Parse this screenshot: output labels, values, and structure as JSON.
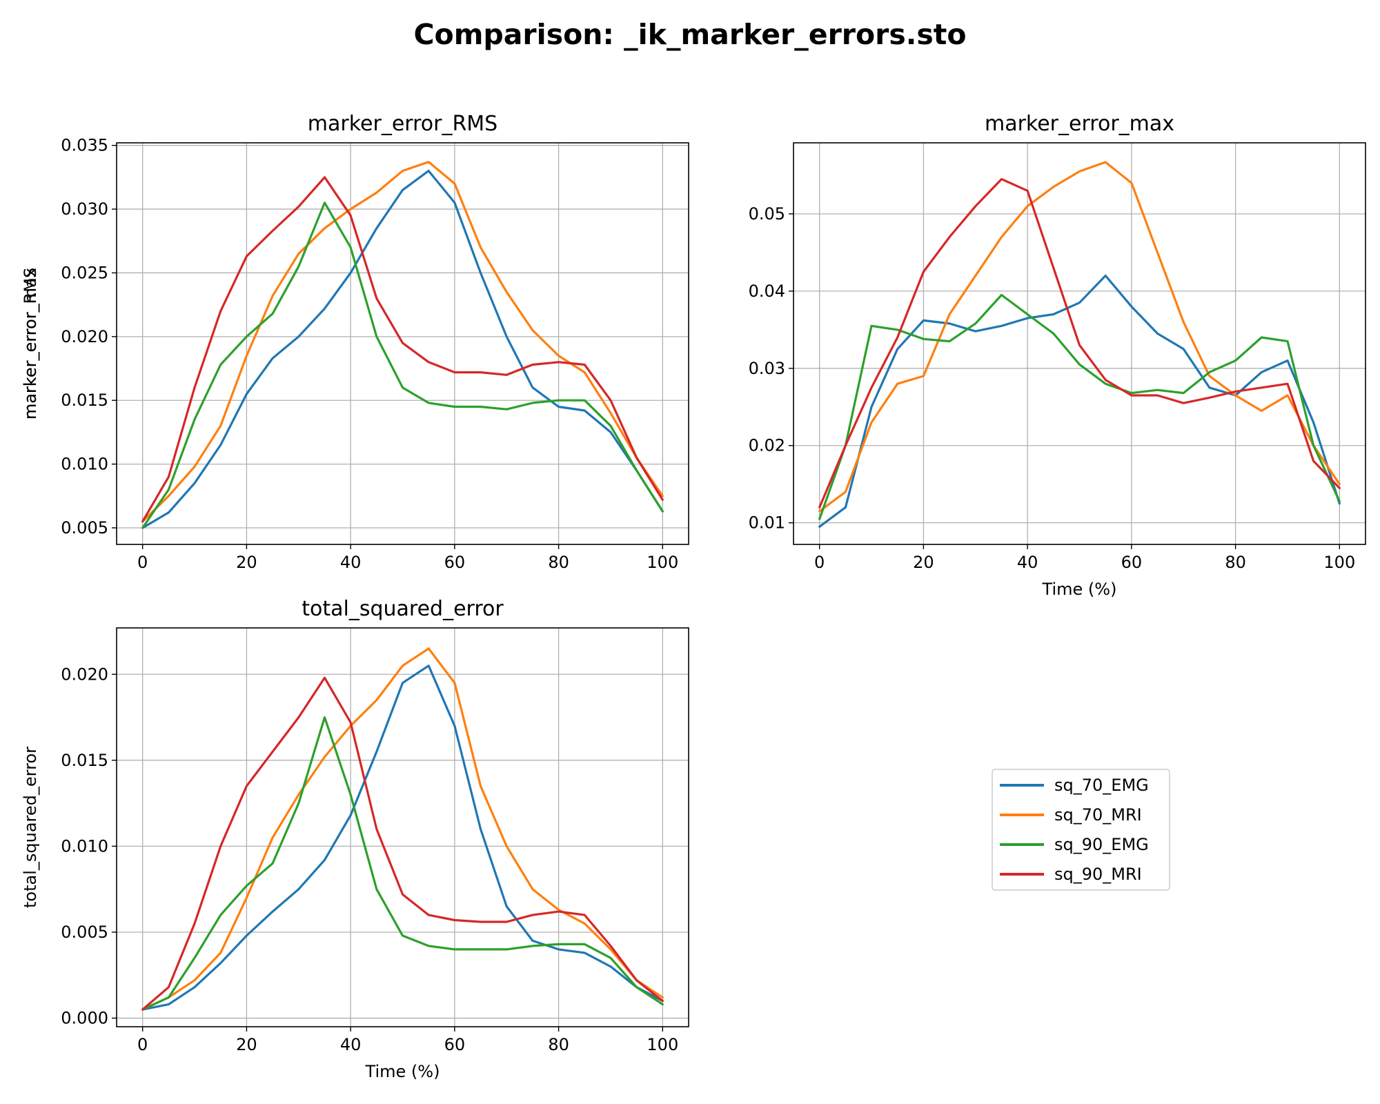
{
  "figure": {
    "title": "Comparison: _ik_marker_errors.sto"
  },
  "legend": {
    "placement": "lower-right empty panel",
    "entries": [
      "sq_70_EMG",
      "sq_70_MRI",
      "sq_90_EMG",
      "sq_90_MRI"
    ]
  },
  "colors": {
    "sq_70_EMG": "#1f77b4",
    "sq_70_MRI": "#ff7f0e",
    "sq_90_EMG": "#2ca02c",
    "sq_90_MRI": "#d62728"
  },
  "chart_data": [
    {
      "type": "line",
      "title": "marker_error_RMS",
      "xlabel": "",
      "ylabel": "marker_error_RMS",
      "xlim": [
        -5,
        105
      ],
      "ylim": [
        0.0037,
        0.0352
      ],
      "xticks": [
        0,
        20,
        40,
        60,
        80,
        100
      ],
      "yticks": [
        0.005,
        0.01,
        0.015,
        0.02,
        0.025,
        0.03,
        0.035
      ],
      "ytick_labels": [
        "0.005",
        "0.010",
        "0.015",
        "0.020",
        "0.025",
        "0.030",
        "0.035"
      ],
      "grid": true,
      "x": [
        0,
        5,
        10,
        15,
        20,
        25,
        30,
        35,
        40,
        45,
        50,
        55,
        60,
        65,
        70,
        75,
        80,
        85,
        90,
        95,
        100
      ],
      "series": [
        {
          "name": "sq_70_EMG",
          "values": [
            0.005,
            0.0062,
            0.0085,
            0.0115,
            0.0155,
            0.0183,
            0.02,
            0.0222,
            0.025,
            0.0285,
            0.0315,
            0.033,
            0.0305,
            0.025,
            0.02,
            0.016,
            0.0145,
            0.0142,
            0.0125,
            0.0095,
            0.0063
          ]
        },
        {
          "name": "sq_70_MRI",
          "values": [
            0.0055,
            0.0075,
            0.0098,
            0.013,
            0.0185,
            0.0232,
            0.0265,
            0.0285,
            0.03,
            0.0313,
            0.033,
            0.0337,
            0.032,
            0.027,
            0.0235,
            0.0205,
            0.0185,
            0.0172,
            0.014,
            0.0105,
            0.0075
          ]
        },
        {
          "name": "sq_90_EMG",
          "values": [
            0.005,
            0.008,
            0.0135,
            0.0178,
            0.02,
            0.0218,
            0.0255,
            0.0305,
            0.027,
            0.02,
            0.016,
            0.0148,
            0.0145,
            0.0145,
            0.0143,
            0.0148,
            0.015,
            0.015,
            0.013,
            0.0095,
            0.0063
          ]
        },
        {
          "name": "sq_90_MRI",
          "values": [
            0.0055,
            0.009,
            0.016,
            0.022,
            0.0263,
            0.0283,
            0.0302,
            0.0325,
            0.0295,
            0.023,
            0.0195,
            0.018,
            0.0172,
            0.0172,
            0.017,
            0.0178,
            0.018,
            0.0178,
            0.015,
            0.0105,
            0.0072
          ]
        }
      ]
    },
    {
      "type": "line",
      "title": "marker_error_max",
      "xlabel": "Time (%)",
      "ylabel": "marker_error_max",
      "xlim": [
        -5,
        105
      ],
      "ylim": [
        0.0072,
        0.0592
      ],
      "xticks": [
        0,
        20,
        40,
        60,
        80,
        100
      ],
      "yticks": [
        0.01,
        0.02,
        0.03,
        0.04,
        0.05
      ],
      "ytick_labels": [
        "0.01",
        "0.02",
        "0.03",
        "0.04",
        "0.05"
      ],
      "grid": true,
      "x": [
        0,
        5,
        10,
        15,
        20,
        25,
        30,
        35,
        40,
        45,
        50,
        55,
        60,
        65,
        70,
        75,
        80,
        85,
        90,
        95,
        100
      ],
      "series": [
        {
          "name": "sq_70_EMG",
          "values": [
            0.0095,
            0.012,
            0.025,
            0.0325,
            0.0362,
            0.0358,
            0.0348,
            0.0355,
            0.0365,
            0.037,
            0.0385,
            0.042,
            0.038,
            0.0345,
            0.0325,
            0.0275,
            0.0265,
            0.0295,
            0.031,
            0.023,
            0.0125
          ]
        },
        {
          "name": "sq_70_MRI",
          "values": [
            0.0115,
            0.014,
            0.023,
            0.028,
            0.029,
            0.037,
            0.042,
            0.047,
            0.051,
            0.0535,
            0.0555,
            0.0567,
            0.054,
            0.045,
            0.036,
            0.029,
            0.0265,
            0.0245,
            0.0265,
            0.02,
            0.015
          ]
        },
        {
          "name": "sq_90_EMG",
          "values": [
            0.0105,
            0.02,
            0.0355,
            0.035,
            0.0338,
            0.0335,
            0.0358,
            0.0395,
            0.037,
            0.0345,
            0.0305,
            0.028,
            0.0268,
            0.0272,
            0.0268,
            0.0295,
            0.031,
            0.034,
            0.0335,
            0.02,
            0.0128
          ]
        },
        {
          "name": "sq_90_MRI",
          "values": [
            0.012,
            0.02,
            0.0275,
            0.034,
            0.0425,
            0.047,
            0.051,
            0.0545,
            0.053,
            0.043,
            0.033,
            0.0285,
            0.0265,
            0.0265,
            0.0255,
            0.0262,
            0.027,
            0.0275,
            0.028,
            0.018,
            0.0145
          ]
        }
      ]
    },
    {
      "type": "line",
      "title": "total_squared_error",
      "xlabel": "Time (%)",
      "ylabel": "total_squared_error",
      "xlim": [
        -5,
        105
      ],
      "ylim": [
        -0.0005,
        0.0227
      ],
      "xticks": [
        0,
        20,
        40,
        60,
        80,
        100
      ],
      "yticks": [
        0.0,
        0.005,
        0.01,
        0.015,
        0.02
      ],
      "ytick_labels": [
        "0.000",
        "0.005",
        "0.010",
        "0.015",
        "0.020"
      ],
      "grid": true,
      "x": [
        0,
        5,
        10,
        15,
        20,
        25,
        30,
        35,
        40,
        45,
        50,
        55,
        60,
        65,
        70,
        75,
        80,
        85,
        90,
        95,
        100
      ],
      "series": [
        {
          "name": "sq_70_EMG",
          "values": [
            0.0005,
            0.0008,
            0.0018,
            0.0032,
            0.0048,
            0.0062,
            0.0075,
            0.0092,
            0.0118,
            0.0155,
            0.0195,
            0.0205,
            0.017,
            0.011,
            0.0065,
            0.0045,
            0.004,
            0.0038,
            0.003,
            0.0018,
            0.001
          ]
        },
        {
          "name": "sq_70_MRI",
          "values": [
            0.0005,
            0.0012,
            0.0022,
            0.0038,
            0.007,
            0.0105,
            0.013,
            0.0152,
            0.017,
            0.0185,
            0.0205,
            0.0215,
            0.0195,
            0.0135,
            0.01,
            0.0075,
            0.0063,
            0.0055,
            0.004,
            0.0022,
            0.0012
          ]
        },
        {
          "name": "sq_90_EMG",
          "values": [
            0.0005,
            0.0012,
            0.0035,
            0.006,
            0.0077,
            0.009,
            0.0125,
            0.0175,
            0.013,
            0.0075,
            0.0048,
            0.0042,
            0.004,
            0.004,
            0.004,
            0.0042,
            0.0043,
            0.0043,
            0.0035,
            0.0018,
            0.0008
          ]
        },
        {
          "name": "sq_90_MRI",
          "values": [
            0.0005,
            0.0018,
            0.0055,
            0.01,
            0.0135,
            0.0155,
            0.0175,
            0.0198,
            0.0172,
            0.011,
            0.0072,
            0.006,
            0.0057,
            0.0056,
            0.0056,
            0.006,
            0.0062,
            0.006,
            0.0042,
            0.0022,
            0.001
          ]
        }
      ]
    }
  ]
}
